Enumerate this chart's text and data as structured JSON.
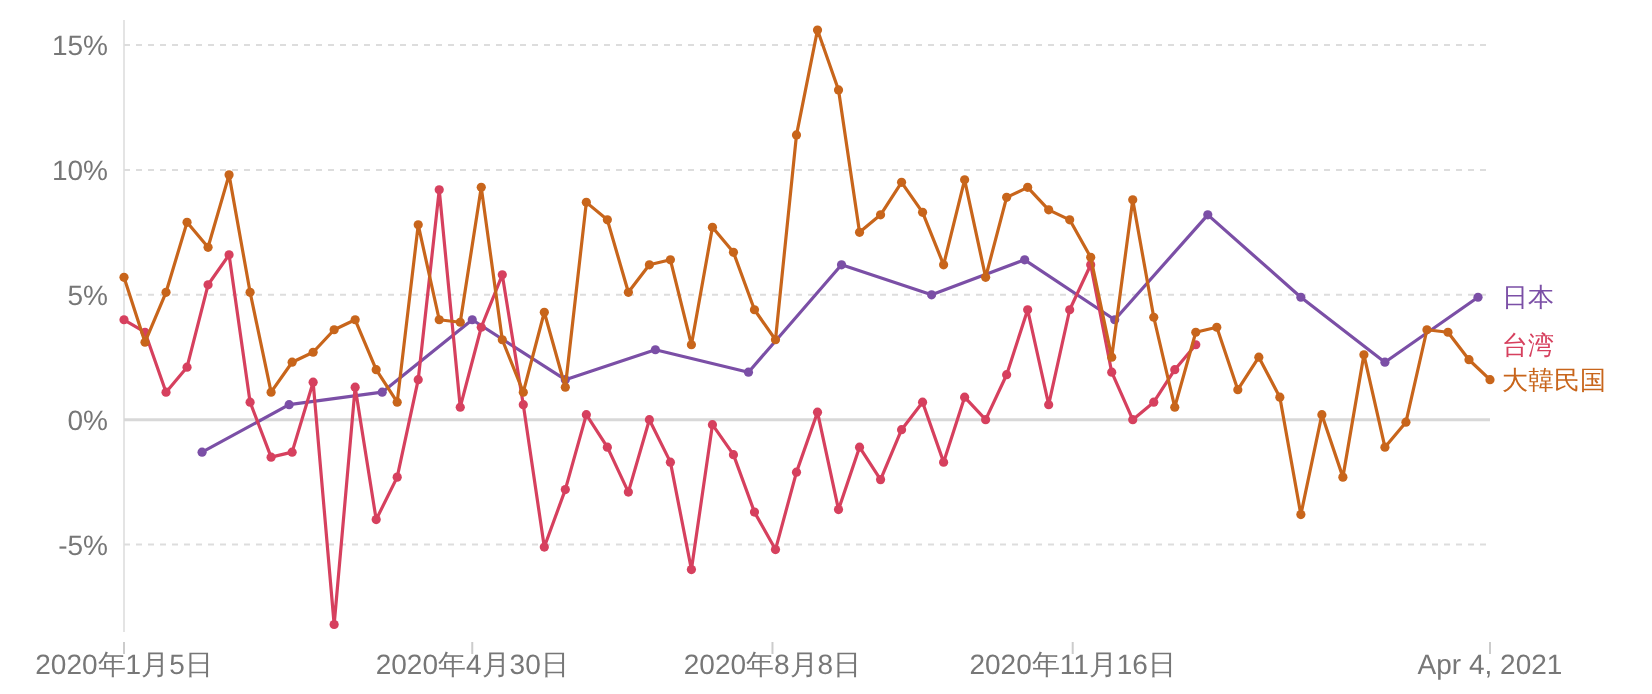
{
  "chart_data": {
    "type": "line",
    "x": [
      "2020-01-05",
      "2020-01-12",
      "2020-01-19",
      "2020-01-26",
      "2020-02-02",
      "2020-02-09",
      "2020-02-16",
      "2020-02-23",
      "2020-03-01",
      "2020-03-08",
      "2020-03-15",
      "2020-03-22",
      "2020-03-29",
      "2020-04-05",
      "2020-04-12",
      "2020-04-19",
      "2020-04-26",
      "2020-05-03",
      "2020-05-10",
      "2020-05-17",
      "2020-05-24",
      "2020-05-31",
      "2020-06-07",
      "2020-06-14",
      "2020-06-21",
      "2020-06-28",
      "2020-07-05",
      "2020-07-12",
      "2020-07-19",
      "2020-07-26",
      "2020-08-02",
      "2020-08-09",
      "2020-08-16",
      "2020-08-23",
      "2020-08-30",
      "2020-09-06",
      "2020-09-13",
      "2020-09-20",
      "2020-09-27",
      "2020-10-04",
      "2020-10-11",
      "2020-10-18",
      "2020-10-25",
      "2020-11-01",
      "2020-11-08",
      "2020-11-15",
      "2020-11-22",
      "2020-11-29",
      "2020-12-06",
      "2020-12-13",
      "2020-12-20",
      "2020-12-27",
      "2021-01-03",
      "2021-01-10",
      "2021-01-17",
      "2021-01-24",
      "2021-01-31",
      "2021-02-07",
      "2021-02-14",
      "2021-02-21",
      "2021-02-28",
      "2021-03-07",
      "2021-03-14",
      "2021-03-21",
      "2021-03-28",
      "2021-04-04"
    ],
    "series": [
      {
        "name": "日本",
        "color": "#7b4fa6",
        "x": [
          "2020-01-31",
          "2020-02-29",
          "2020-03-31",
          "2020-04-30",
          "2020-05-31",
          "2020-06-30",
          "2020-07-31",
          "2020-08-31",
          "2020-09-30",
          "2020-10-31",
          "2020-11-30",
          "2020-12-31",
          "2021-01-31",
          "2021-02-28",
          "2021-03-31"
        ],
        "values": [
          -1.3,
          0.6,
          1.1,
          4.0,
          1.6,
          2.8,
          1.9,
          6.2,
          5.0,
          6.4,
          4.0,
          8.2,
          4.9,
          2.3,
          4.9
        ]
      },
      {
        "name": "台湾",
        "color": "#d6405e",
        "values": [
          4.0,
          3.5,
          1.1,
          2.1,
          5.4,
          6.6,
          0.7,
          -1.5,
          -1.3,
          1.5,
          -8.2,
          1.3,
          -4.0,
          -2.3,
          1.6,
          9.2,
          0.5,
          3.7,
          5.8,
          0.6,
          -5.1,
          -2.8,
          0.2,
          -1.1,
          -2.9,
          0.0,
          -1.7,
          -6.0,
          -0.2,
          -1.4,
          -3.7,
          -5.2,
          -2.1,
          0.3,
          -3.6,
          -1.1,
          -2.4,
          -0.4,
          0.7,
          -1.7,
          0.9,
          0.0,
          1.8,
          4.4,
          0.6,
          4.4,
          6.2,
          1.9,
          0.0,
          0.7,
          2.0,
          3.0,
          null,
          null,
          null,
          null,
          null,
          null,
          null,
          null,
          null,
          null,
          null,
          null,
          null,
          null
        ]
      },
      {
        "name": "大韓民国",
        "color": "#c8651b",
        "values": [
          5.7,
          3.1,
          5.1,
          7.9,
          6.9,
          9.8,
          5.1,
          1.1,
          2.3,
          2.7,
          3.6,
          4.0,
          2.0,
          0.7,
          7.8,
          4.0,
          3.9,
          9.3,
          3.2,
          1.1,
          4.3,
          1.3,
          8.7,
          8.0,
          5.1,
          6.2,
          6.4,
          3.0,
          7.7,
          6.7,
          4.4,
          3.2,
          11.4,
          15.6,
          13.2,
          7.5,
          8.2,
          9.5,
          8.3,
          6.2,
          9.6,
          5.7,
          8.9,
          9.3,
          8.4,
          8.0,
          6.5,
          2.5,
          8.8,
          4.1,
          0.5,
          3.5,
          3.7,
          1.2,
          2.5,
          0.9,
          -3.8,
          0.2,
          -2.3,
          2.6,
          -1.1,
          -0.1,
          3.6,
          3.5,
          2.4,
          1.6
        ]
      }
    ],
    "xlim": [
      "2020-01-05",
      "2021-04-04"
    ],
    "xticks": [
      {
        "value": "2020-01-05",
        "label": "2020年1月5日"
      },
      {
        "value": "2020-04-30",
        "label": "2020年4月30日"
      },
      {
        "value": "2020-08-08",
        "label": "2020年8月8日"
      },
      {
        "value": "2020-11-16",
        "label": "2020年11月16日"
      },
      {
        "value": "2021-04-04",
        "label": "Apr 4, 2021"
      }
    ],
    "ylim": [
      -8.5,
      16
    ],
    "yticks": [
      {
        "value": -5,
        "label": "-5%"
      },
      {
        "value": 0,
        "label": "0%"
      },
      {
        "value": 5,
        "label": "5%"
      },
      {
        "value": 10,
        "label": "10%"
      },
      {
        "value": 15,
        "label": "15%"
      }
    ],
    "grid": "y",
    "marker": "circle",
    "line_style": "solid"
  }
}
